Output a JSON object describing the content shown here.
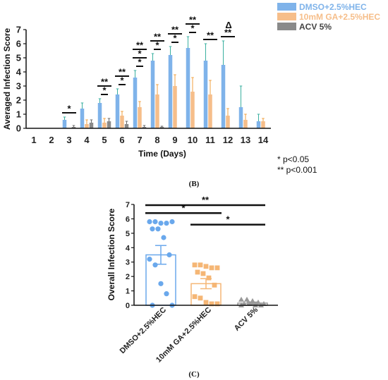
{
  "chart_data": [
    {
      "type": "bar",
      "panel": "top",
      "ylabel": "Averaged Infection Score",
      "xlabel": "Time (Days)",
      "ylim": [
        0,
        7
      ],
      "yticks": [
        "0",
        "1",
        "2",
        "3",
        "4",
        "5",
        "6",
        "7"
      ],
      "categories": [
        "1",
        "2",
        "3",
        "4",
        "5",
        "6",
        "7",
        "8",
        "9",
        "10",
        "11",
        "12",
        "13",
        "14"
      ],
      "legend_position": "top-right",
      "series": [
        {
          "name": "DMSO+2.5%HEC",
          "color": "#7fb3ea",
          "values": [
            0,
            0,
            0.6,
            1.4,
            1.8,
            2.4,
            3.6,
            4.8,
            5.2,
            5.7,
            4.8,
            4.5,
            1.5,
            0.5
          ],
          "errors": [
            0,
            0,
            0.2,
            0.4,
            0.3,
            0.4,
            0.5,
            0.5,
            0.6,
            0.8,
            1.2,
            1.7,
            1.5,
            0.5
          ]
        },
        {
          "name": "10mM GA+2.5%HEC",
          "color": "#f6be8a",
          "values": [
            0,
            0,
            0,
            0.3,
            0.4,
            0.9,
            1.5,
            2.4,
            3.0,
            2.6,
            2.4,
            0.9,
            0.6,
            0.5
          ],
          "errors": [
            0,
            0,
            0,
            0.3,
            0.3,
            0.3,
            0.4,
            0.7,
            0.8,
            1.0,
            1.0,
            0.5,
            0.4,
            0.2
          ]
        },
        {
          "name": "ACV 5%",
          "color": "#8a8a8a",
          "values": [
            0,
            0,
            0.1,
            0.4,
            0.5,
            0.3,
            0.1,
            0.1,
            0,
            0,
            0,
            0,
            0,
            0
          ],
          "errors": [
            0,
            0,
            0.1,
            0.2,
            0.2,
            0.2,
            0.1,
            0.05,
            0,
            0,
            0,
            0,
            0,
            0
          ]
        }
      ],
      "annotations": [
        {
          "day": "3",
          "pairs": [
            "*"
          ]
        },
        {
          "day": "5",
          "pairs": [
            "**",
            "*"
          ]
        },
        {
          "day": "6",
          "pairs": [
            "**",
            "*"
          ]
        },
        {
          "day": "7",
          "pairs": [
            "**",
            "*",
            "*"
          ]
        },
        {
          "day": "8",
          "pairs": [
            "**",
            "*"
          ]
        },
        {
          "day": "9",
          "pairs": [
            "**",
            "*"
          ]
        },
        {
          "day": "10",
          "pairs": [
            "**",
            "*"
          ]
        },
        {
          "day": "11",
          "pairs": [
            "**"
          ]
        },
        {
          "day": "12",
          "pairs": [
            "**"
          ],
          "extra": "Δ"
        }
      ],
      "significance_notes": [
        "* p<0.05",
        "** p<0.001"
      ],
      "caption": "(B)"
    },
    {
      "type": "scatter",
      "panel": "bottom",
      "ylabel": "Overall Infection Score",
      "ylim": [
        0,
        7
      ],
      "yticks": [
        "0",
        "1",
        "2",
        "3",
        "4",
        "5",
        "6",
        "7"
      ],
      "categories": [
        "DMSO+2.5%HEC",
        "10mM GA+2.5%HEC",
        "ACV 5%"
      ],
      "groups": [
        {
          "name": "DMSO+2.5%HEC",
          "color": "#6aa8ec",
          "mean": 3.5,
          "sem": 0.65,
          "points": [
            5.8,
            5.8,
            5.7,
            5.7,
            5.8,
            5.3,
            5.3,
            4.7,
            3.5,
            3.2,
            2.8,
            1.5,
            0.8,
            0,
            0
          ]
        },
        {
          "name": "10mM GA+2.5%HEC",
          "color": "#f5b675",
          "mean": 1.5,
          "sem": 0.35,
          "points": [
            2.8,
            2.8,
            2.7,
            2.6,
            2.6,
            2.3,
            2.2,
            1.9,
            1.4,
            0.6,
            0.5,
            0.2,
            0.1,
            0.1
          ]
        },
        {
          "name": "ACV 5%",
          "color": "#999999",
          "mean": 0.15,
          "sem": 0.07,
          "points": [
            0.4,
            0.4,
            0.3,
            0.2,
            0.1,
            0.1,
            0.1,
            0,
            0,
            0
          ]
        }
      ],
      "comparisons": [
        {
          "from": "DMSO+2.5%HEC",
          "to": "ACV 5%",
          "label": "**"
        },
        {
          "from": "DMSO+2.5%HEC",
          "to": "10mM GA+2.5%HEC",
          "label": "*"
        },
        {
          "from": "10mM GA+2.5%HEC",
          "to": "ACV 5%",
          "label": "*"
        }
      ],
      "caption": "(C)"
    }
  ]
}
